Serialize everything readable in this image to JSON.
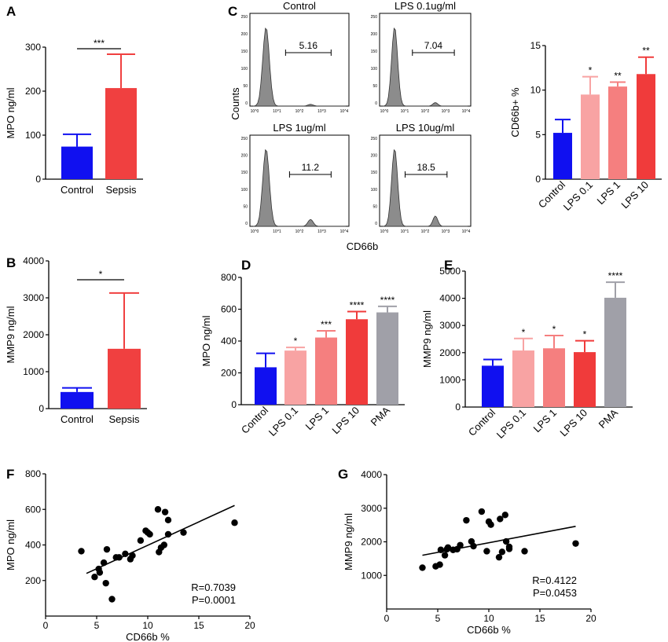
{
  "colors": {
    "control": "#1010f0",
    "lps01": "#f8a3a3",
    "lps1": "#f57f7f",
    "lps10": "#f03b3b",
    "pma": "#a0a0a8",
    "sepsis": "#f04040",
    "histogram_fill": "#8c8c8c"
  },
  "panels": {
    "A": "A",
    "B": "B",
    "C": "C",
    "D": "D",
    "E": "E",
    "F": "F",
    "G": "G"
  },
  "flow": {
    "y_label": "Counts",
    "x_label": "CD66b",
    "tick_labels": [
      "10^0",
      "10^1",
      "10^2",
      "10^3",
      "10^4"
    ],
    "y_tick_labels": [
      "250",
      "200",
      "150",
      "100",
      "50",
      "0"
    ],
    "plots": [
      {
        "title": "Control",
        "gate_value": "5.16"
      },
      {
        "title": "LPS 0.1ug/ml",
        "gate_value": "7.04"
      },
      {
        "title": "LPS 1ug/ml",
        "gate_value": "11.2"
      },
      {
        "title": "LPS 10ug/ml",
        "gate_value": "18.5"
      }
    ]
  },
  "chart_data": [
    {
      "id": "A",
      "type": "bar",
      "categories": [
        "Control",
        "Sepsis"
      ],
      "values": [
        74,
        207
      ],
      "errors": [
        28,
        77
      ],
      "ylabel": "MPO ng/ml",
      "ylim": [
        0,
        300
      ],
      "yticks": [
        0,
        100,
        200,
        300
      ],
      "significance": [
        {
          "between": [
            0,
            1
          ],
          "label": "***"
        }
      ]
    },
    {
      "id": "B",
      "type": "bar",
      "categories": [
        "Control",
        "Sepsis"
      ],
      "values": [
        450,
        1620
      ],
      "errors": [
        110,
        1510
      ],
      "ylabel": "MMP9 ng/ml",
      "ylim": [
        0,
        4000
      ],
      "yticks": [
        0,
        1000,
        2000,
        3000,
        4000
      ],
      "significance": [
        {
          "between": [
            0,
            1
          ],
          "label": "*"
        }
      ]
    },
    {
      "id": "C",
      "type": "bar",
      "categories": [
        "Control",
        "LPS 0.1",
        "LPS 1",
        "LPS 10"
      ],
      "values": [
        5.2,
        9.5,
        10.4,
        11.8
      ],
      "errors": [
        1.5,
        2.0,
        0.5,
        1.9
      ],
      "stars": [
        "",
        "*",
        "**",
        "**"
      ],
      "ylabel": "CD66b+ %",
      "ylim": [
        0,
        15
      ],
      "yticks": [
        0,
        5,
        10,
        15
      ]
    },
    {
      "id": "D",
      "type": "bar",
      "categories": [
        "Control",
        "LPS 0.1",
        "LPS 1",
        "LPS 10",
        "PMA"
      ],
      "values": [
        235,
        340,
        422,
        537,
        580
      ],
      "errors": [
        88,
        20,
        42,
        48,
        38
      ],
      "stars": [
        "",
        "*",
        "***",
        "****",
        "****"
      ],
      "ylabel": "MPO ng/ml",
      "ylim": [
        0,
        800
      ],
      "yticks": [
        0,
        200,
        400,
        600,
        800
      ]
    },
    {
      "id": "E",
      "type": "bar",
      "categories": [
        "Control",
        "LPS 0.1",
        "LPS 1",
        "LPS 10",
        "PMA"
      ],
      "values": [
        1520,
        2080,
        2160,
        2020,
        4020
      ],
      "errors": [
        230,
        440,
        470,
        420,
        570
      ],
      "stars": [
        "",
        "*",
        "*",
        "*",
        "****"
      ],
      "ylabel": "MMP9 ng/ml",
      "ylim": [
        0,
        5000
      ],
      "yticks": [
        0,
        1000,
        2000,
        3000,
        4000,
        5000
      ]
    },
    {
      "id": "F",
      "type": "scatter",
      "x": [
        3.5,
        4.8,
        5.2,
        5.3,
        5.7,
        5.9,
        6.0,
        6.5,
        6.9,
        7.2,
        7.8,
        8.3,
        8.5,
        9.3,
        9.8,
        10.0,
        10.2,
        11.0,
        11.1,
        11.3,
        11.6,
        11.7,
        12.0,
        12.0,
        13.5,
        18.5
      ],
      "y": [
        365,
        220,
        265,
        245,
        300,
        185,
        375,
        95,
        330,
        330,
        350,
        320,
        340,
        425,
        480,
        470,
        460,
        600,
        360,
        385,
        400,
        585,
        540,
        460,
        470,
        525
      ],
      "fit": {
        "x": [
          4.0,
          18.5
        ],
        "y": [
          240,
          622
        ]
      },
      "annotations": [
        "R=0.7039",
        "P=0.0001"
      ],
      "xlabel": "CD66b %",
      "ylabel": "MPO ng/ml",
      "xlim": [
        0,
        20
      ],
      "ylim": [
        0,
        800
      ],
      "xticks": [
        0,
        5,
        10,
        15,
        20
      ],
      "yticks": [
        200,
        400,
        600,
        800
      ]
    },
    {
      "id": "G",
      "type": "scatter",
      "x": [
        3.5,
        4.8,
        5.2,
        5.3,
        5.7,
        5.9,
        6.0,
        6.5,
        6.9,
        7.2,
        7.8,
        8.3,
        8.5,
        9.3,
        9.8,
        10.0,
        10.2,
        11.0,
        11.1,
        11.3,
        11.6,
        11.7,
        12.0,
        12.0,
        13.5,
        18.5
      ],
      "y": [
        1230,
        1270,
        1320,
        1760,
        1600,
        1780,
        1830,
        1760,
        1780,
        1900,
        2640,
        2010,
        1870,
        2900,
        1720,
        2600,
        2510,
        1540,
        2680,
        1700,
        2800,
        2010,
        1850,
        1790,
        1720,
        1950
      ],
      "fit": {
        "x": [
          3.5,
          18.5
        ],
        "y": [
          1600,
          2460
        ]
      },
      "annotations": [
        "R=0.4122",
        "P=0.0453"
      ],
      "xlabel": "CD66b %",
      "ylabel": "MMP9 ng/ml",
      "xlim": [
        0,
        20
      ],
      "ylim": [
        0,
        4000
      ],
      "xticks": [
        0,
        5,
        10,
        15,
        20
      ],
      "yticks": [
        1000,
        2000,
        3000,
        4000
      ]
    }
  ]
}
